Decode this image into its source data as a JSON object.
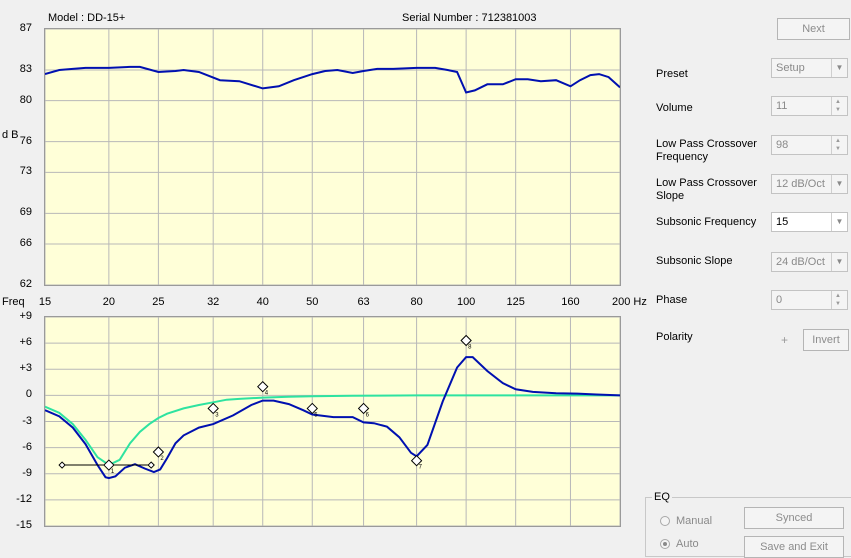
{
  "header": {
    "model": "Model : DD-15+",
    "serial": "Serial Number : 712381003"
  },
  "response_graph": {
    "y_axis_label": "d B",
    "y_ticks": [
      "87",
      "83",
      "80",
      "76",
      "73",
      "69",
      "66",
      "62"
    ],
    "x_axis_label": "Freq",
    "x_ticks": [
      "15",
      "20",
      "25",
      "32",
      "40",
      "50",
      "63",
      "80",
      "100",
      "125",
      "160",
      "200 Hz"
    ],
    "line_color": "#0010b0"
  },
  "eq_graph": {
    "y_ticks": [
      "+9",
      "+6",
      "+3",
      "0",
      "-3",
      "-6",
      "-9",
      "-12",
      "-15"
    ],
    "colors": {
      "response": "#0010b0",
      "target": "#2ee3a0",
      "marker": "#000000"
    },
    "markers": [
      "1",
      "2",
      "3",
      "4",
      "5",
      "6",
      "7",
      "8"
    ]
  },
  "chart_data": [
    {
      "type": "line",
      "title": "",
      "xlabel": "Freq",
      "ylabel": "d B",
      "xscale": "log",
      "xlim": [
        15,
        200
      ],
      "ylim": [
        62,
        87
      ],
      "grid": true,
      "series": [
        {
          "x": [
            15,
            16,
            17,
            18,
            20,
            22,
            23,
            25,
            27,
            28,
            30,
            33,
            36,
            40,
            43,
            46,
            50,
            53,
            56,
            60,
            63,
            67,
            72,
            80,
            87,
            92,
            96,
            100,
            104,
            110,
            118,
            125,
            132,
            140,
            150,
            160,
            167,
            175,
            182,
            190,
            200
          ],
          "y": [
            82.6,
            83.0,
            83.1,
            83.2,
            83.2,
            83.3,
            83.3,
            82.8,
            82.9,
            83.0,
            82.8,
            82.0,
            81.9,
            81.2,
            81.4,
            82.0,
            82.6,
            82.9,
            83.0,
            82.7,
            82.9,
            83.1,
            83.1,
            83.2,
            83.2,
            83.0,
            82.8,
            80.8,
            81.0,
            81.6,
            81.6,
            82.1,
            82.1,
            81.9,
            82.0,
            81.4,
            82.0,
            82.5,
            82.6,
            82.3,
            81.3
          ]
        }
      ]
    },
    {
      "type": "line",
      "title": "",
      "xscale": "log",
      "xlim": [
        15,
        200
      ],
      "ylim": [
        -15,
        9
      ],
      "grid": true,
      "series": [
        {
          "x": [
            15,
            16,
            17,
            18,
            19,
            19.7,
            20,
            20.6,
            21.5,
            22.5,
            23.5,
            24.5,
            25.2,
            26,
            27,
            28,
            30,
            32,
            35,
            38,
            40,
            42,
            45,
            48,
            50,
            55,
            60,
            63,
            66,
            70,
            74,
            78,
            80,
            84,
            90,
            96,
            100,
            103,
            110,
            118,
            125,
            135,
            150,
            165,
            180,
            200
          ],
          "y": [
            -1.7,
            -2.4,
            -3.7,
            -5.6,
            -8.0,
            -9.4,
            -9.5,
            -9.3,
            -8.3,
            -7.9,
            -8.4,
            -8.8,
            -8.5,
            -7.2,
            -5.5,
            -4.6,
            -3.7,
            -3.3,
            -2.3,
            -1.1,
            -0.6,
            -0.6,
            -1.0,
            -1.7,
            -2.2,
            -2.5,
            -2.5,
            -3.1,
            -3.2,
            -3.6,
            -4.8,
            -6.6,
            -7.0,
            -5.7,
            -0.7,
            3.2,
            4.4,
            4.4,
            2.8,
            1.4,
            0.7,
            0.4,
            0.25,
            0.2,
            0.1,
            0
          ]
        },
        {
          "x": [
            15,
            16,
            17,
            18,
            19,
            20,
            21,
            22,
            23,
            24,
            25,
            26,
            28,
            30,
            32,
            34,
            36,
            40,
            45,
            50,
            60,
            80,
            100,
            150,
            200
          ],
          "y": [
            -1.3,
            -2.0,
            -3.3,
            -5.1,
            -7.1,
            -8.0,
            -7.4,
            -5.5,
            -4.2,
            -3.3,
            -2.6,
            -2.1,
            -1.5,
            -1.1,
            -0.8,
            -0.5,
            -0.4,
            -0.25,
            -0.15,
            -0.1,
            -0.05,
            0,
            0,
            0,
            0
          ]
        }
      ],
      "points": [
        {
          "label": "1",
          "x": 20,
          "y": -8.0
        },
        {
          "label": "2",
          "x": 25,
          "y": -6.5
        },
        {
          "label": "3",
          "x": 32,
          "y": -1.5
        },
        {
          "label": "4",
          "x": 40,
          "y": 1.0
        },
        {
          "label": "5",
          "x": 50,
          "y": -1.5
        },
        {
          "label": "6",
          "x": 63,
          "y": -1.5
        },
        {
          "label": "7",
          "x": 80,
          "y": -7.5
        },
        {
          "label": "8",
          "x": 100,
          "y": 6.3
        }
      ],
      "handle": {
        "x": [
          16.2,
          24.2
        ],
        "y": -8.0
      }
    }
  ],
  "controls": {
    "next_label": "Next",
    "preset_label": "Preset",
    "preset_value": "Setup",
    "volume_label": "Volume",
    "volume_value": "11",
    "lp_freq_label_1": "Low Pass Crossover",
    "lp_freq_label_2": "Frequency",
    "lp_freq_value": "98",
    "lp_slope_label_1": "Low Pass Crossover",
    "lp_slope_label_2": "Slope",
    "lp_slope_value": "12 dB/Oct",
    "sub_freq_label": "Subsonic Frequency",
    "sub_freq_value": "15",
    "sub_slope_label": "Subsonic Slope",
    "sub_slope_value": "24 dB/Oct",
    "phase_label": "Phase",
    "phase_value": "0",
    "polarity_label": "Polarity",
    "polarity_symbol": "+",
    "invert_label": "Invert"
  },
  "eq_group": {
    "title": "EQ",
    "manual_label": "Manual",
    "auto_label": "Auto",
    "synced_label": "Synced",
    "save_exit_label": "Save and Exit"
  }
}
